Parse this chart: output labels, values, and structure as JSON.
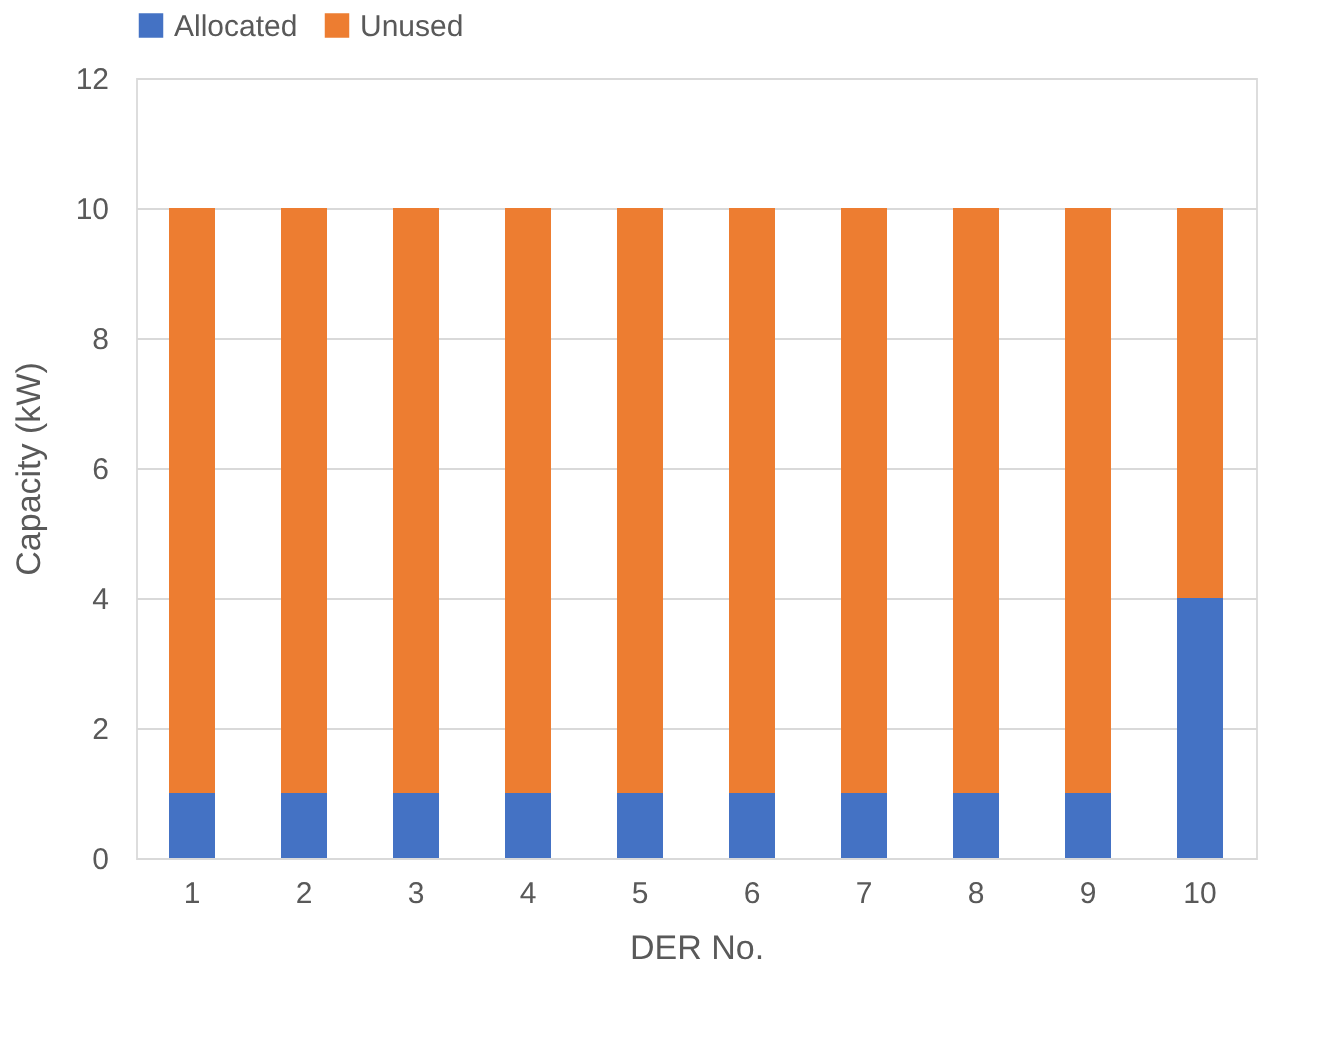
{
  "chart_data": {
    "type": "bar",
    "stacked": true,
    "xlabel": "DER No.",
    "ylabel": "Capacity (kW)",
    "categories": [
      "1",
      "2",
      "3",
      "4",
      "5",
      "6",
      "7",
      "8",
      "9",
      "10"
    ],
    "series": [
      {
        "name": "Allocated",
        "color": "#4472c4",
        "values": [
          1,
          1,
          1,
          1,
          1,
          1,
          1,
          1,
          1,
          4
        ]
      },
      {
        "name": "Unused",
        "color": "#ed7d31",
        "values": [
          9,
          9,
          9,
          9,
          9,
          9,
          9,
          9,
          9,
          6
        ]
      }
    ],
    "ylim": [
      0,
      12
    ],
    "yticks": [
      0,
      2,
      4,
      6,
      8,
      10,
      12
    ],
    "grid": "y",
    "legend": "top"
  }
}
